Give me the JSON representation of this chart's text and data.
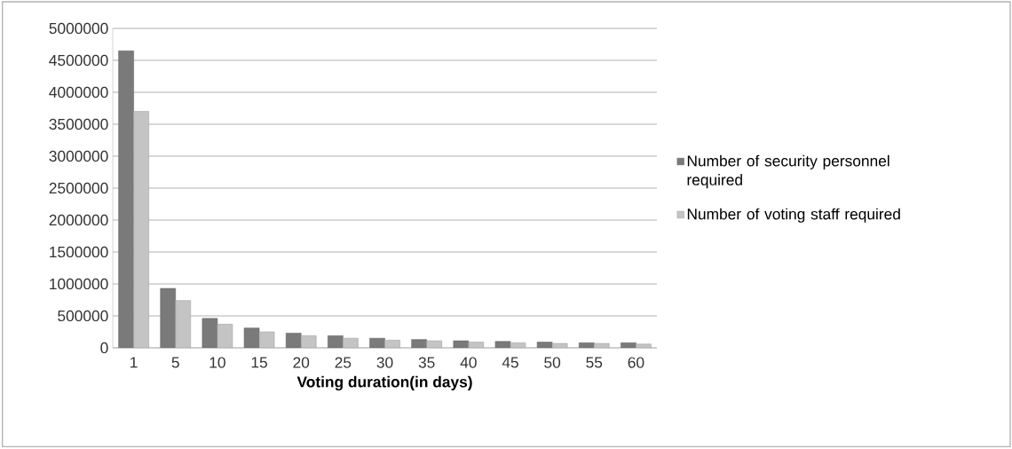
{
  "chart_data": {
    "type": "bar",
    "xlabel": "**Voting duration(in days)**",
    "categories": [
      "1",
      "5",
      "10",
      "15",
      "20",
      "25",
      "30",
      "35",
      "40",
      "45",
      "50",
      "55",
      "60"
    ],
    "series": [
      {
        "name": "Number of security personnel required",
        "color": "#7a7a7a",
        "values": [
          4650000,
          930000,
          460000,
          310000,
          230000,
          190000,
          150000,
          130000,
          110000,
          100000,
          90000,
          80000,
          80000
        ]
      },
      {
        "name": "Number of voting staff required",
        "color": "#c4c4c4",
        "values": [
          3700000,
          740000,
          370000,
          250000,
          190000,
          150000,
          120000,
          110000,
          90000,
          80000,
          70000,
          70000,
          60000
        ]
      }
    ],
    "ylim": [
      0,
      5000000
    ],
    "yticks": [
      0,
      500000,
      1000000,
      1500000,
      2000000,
      2500000,
      3000000,
      3500000,
      4000000,
      4500000,
      5000000
    ],
    "grid": "y",
    "legend": "right"
  }
}
